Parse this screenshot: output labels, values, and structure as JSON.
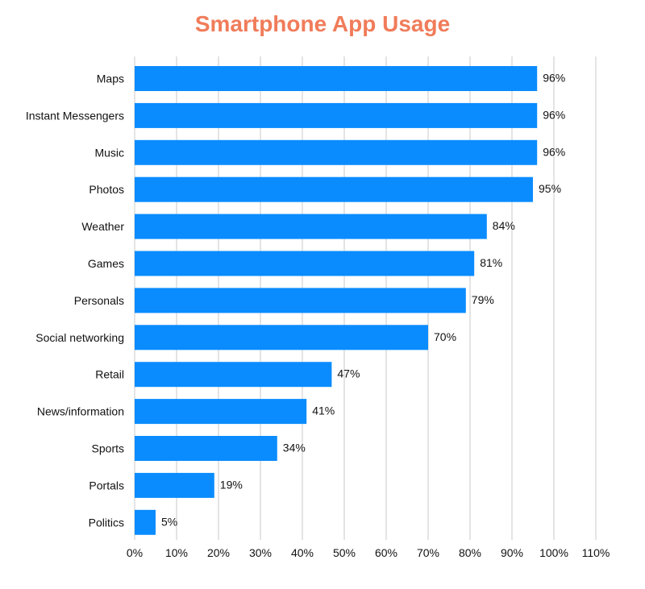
{
  "chart_data": {
    "type": "bar",
    "orientation": "horizontal",
    "title": "Smartphone App Usage",
    "xlabel": "",
    "ylabel": "",
    "categories": [
      "Maps",
      "Instant Messengers",
      "Music",
      "Photos",
      "Weather",
      "Games",
      "Personals",
      "Social networking",
      "Retail",
      "News/information",
      "Sports",
      "Portals",
      "Politics"
    ],
    "values": [
      96,
      96,
      96,
      95,
      84,
      81,
      79,
      70,
      47,
      41,
      34,
      19,
      5
    ],
    "value_labels": [
      "96%",
      "96%",
      "96%",
      "95%",
      "84%",
      "81%",
      "79%",
      "70%",
      "47%",
      "41%",
      "34%",
      "19%",
      "5%"
    ],
    "xlim": [
      0,
      110
    ],
    "x_ticks": [
      0,
      10,
      20,
      30,
      40,
      50,
      60,
      70,
      80,
      90,
      100,
      110
    ],
    "x_tick_labels": [
      "0%",
      "10%",
      "20%",
      "30%",
      "40%",
      "50%",
      "60%",
      "70%",
      "80%",
      "90%",
      "100%",
      "110%"
    ],
    "grid": true,
    "legend": "none",
    "colors": {
      "bar": "#0a8cff",
      "title": "#f07c5a",
      "gridline": "#c8c8c8",
      "text": "#111111"
    }
  }
}
